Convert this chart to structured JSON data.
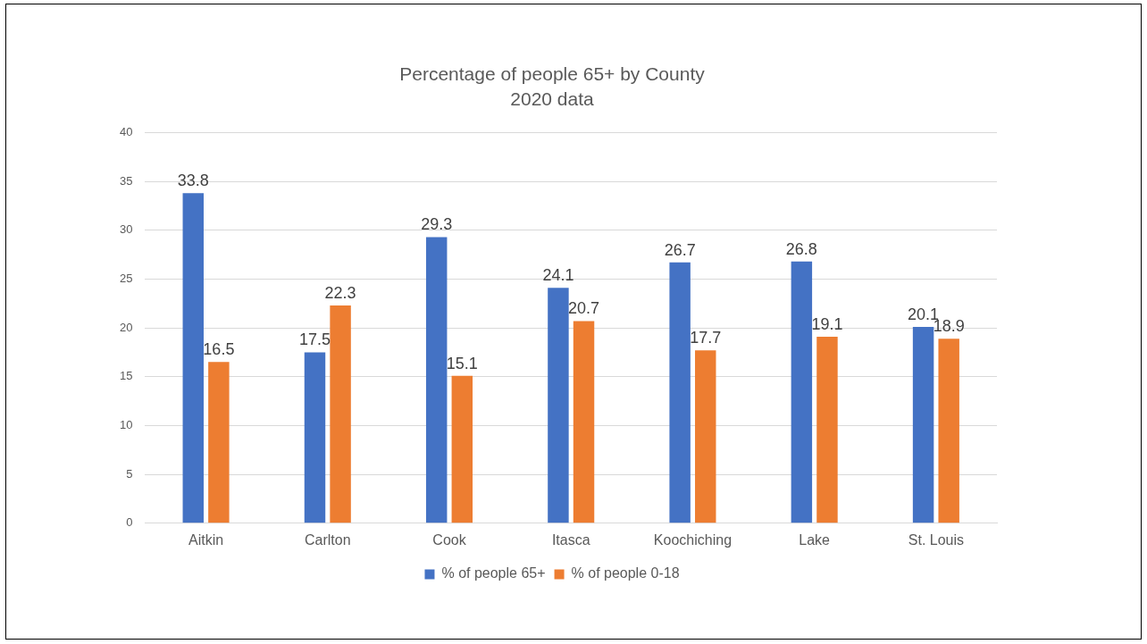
{
  "chart_data": {
    "type": "bar",
    "title": "Percentage of people 65+ by County",
    "subtitle": "2020 data",
    "categories": [
      "Aitkin",
      "Carlton",
      "Cook",
      "Itasca",
      "Koochiching",
      "Lake",
      "St. Louis"
    ],
    "series": [
      {
        "name": "% of people 65+",
        "color": "#4472c4",
        "values": [
          33.8,
          17.5,
          29.3,
          24.1,
          26.7,
          26.8,
          20.1
        ]
      },
      {
        "name": "% of people 0-18",
        "color": "#ed7d31",
        "values": [
          16.5,
          22.3,
          15.1,
          20.7,
          17.7,
          19.1,
          18.9
        ]
      }
    ],
    "ylim": [
      0,
      40
    ],
    "yticks": [
      0,
      5,
      10,
      15,
      20,
      25,
      30,
      35,
      40
    ],
    "grid": "y",
    "legend": "bottom",
    "data_labels": true
  }
}
